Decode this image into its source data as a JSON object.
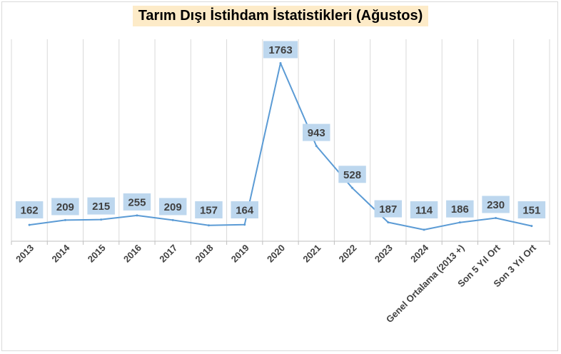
{
  "title": "Tarım Dışı İstihdam İstatistikleri (Ağustos)",
  "colors": {
    "line": "#5b9bd5",
    "label_bg": "#bdd7ee",
    "title_bg": "#fdebc8",
    "grid": "#d9d9d9"
  },
  "chart_data": {
    "type": "line",
    "title": "Tarım Dışı İstihdam İstatistikleri (Ağustos)",
    "xlabel": "",
    "ylabel": "",
    "categories": [
      "2013",
      "2014",
      "2015",
      "2016",
      "2017",
      "2018",
      "2019",
      "2020",
      "2021",
      "2022",
      "2023",
      "2024",
      "Genel Ortalama (2013 +)",
      "Son 5 Yıl Ort",
      "Son 3 Yıl Ort"
    ],
    "values": [
      162,
      209,
      215,
      255,
      209,
      157,
      164,
      1763,
      943,
      528,
      187,
      114,
      186,
      230,
      151
    ],
    "ylim": [
      0,
      2000
    ],
    "grid": "vertical",
    "legend": "none"
  }
}
